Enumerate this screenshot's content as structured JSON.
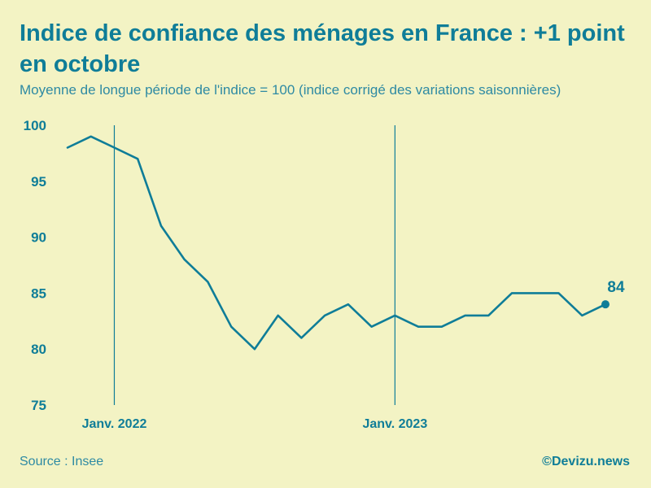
{
  "header": {
    "title": "Indice de confiance des ménages en France : +1 point en octobre",
    "subtitle": "Moyenne de longue période de l'indice = 100 (indice corrigé des variations saisonnières)"
  },
  "footer": {
    "source": "Source : Insee",
    "credit": "©Devizu.news"
  },
  "colors": {
    "line": "#0f7d98",
    "background": "#f3f3c4",
    "text": "#0f7d98"
  },
  "chart_data": {
    "type": "line",
    "title": "Indice de confiance des ménages en France : +1 point en octobre",
    "subtitle": "Moyenne de longue période de l'indice = 100 (indice corrigé des variations saisonnières)",
    "x": [
      "2021-11",
      "2021-12",
      "2022-01",
      "2022-02",
      "2022-03",
      "2022-04",
      "2022-05",
      "2022-06",
      "2022-07",
      "2022-08",
      "2022-09",
      "2022-10",
      "2022-11",
      "2022-12",
      "2023-01",
      "2023-02",
      "2023-03",
      "2023-04",
      "2023-05",
      "2023-06",
      "2023-07",
      "2023-08",
      "2023-09",
      "2023-10"
    ],
    "series": [
      {
        "values": [
          98,
          99,
          98,
          97,
          91,
          88,
          86,
          82,
          80,
          83,
          81,
          83,
          84,
          82,
          83,
          82,
          82,
          83,
          83,
          85,
          85,
          85,
          83,
          84
        ]
      }
    ],
    "ylim": [
      75,
      100
    ],
    "yticks": [
      75,
      80,
      85,
      90,
      95,
      100
    ],
    "reference_lines": [
      {
        "x": "2022-01",
        "label": "Janv. 2022"
      },
      {
        "x": "2023-01",
        "label": "Janv. 2023"
      }
    ],
    "end_label": "84",
    "grid": false,
    "legend": "none"
  }
}
